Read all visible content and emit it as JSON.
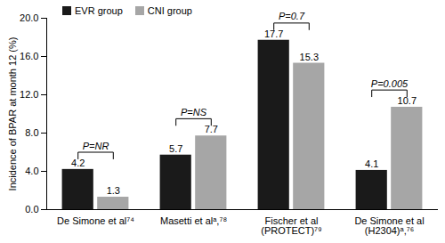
{
  "chart_data": {
    "type": "bar",
    "ylabel": "Incidence of BPAR at month 12 (%)",
    "categories": [
      "De Simone et al⁷⁴",
      "Masetti et alᵃ,⁷⁸",
      "Fischer et al\n(PROTECT)⁷⁹",
      "De Simone et al\n(H2304)ᵃ,⁷⁶"
    ],
    "series": [
      {
        "name": "EVR group",
        "color": "#1a1a1a",
        "values": [
          4.2,
          5.7,
          17.7,
          4.1
        ]
      },
      {
        "name": "CNI group",
        "color": "#a6a6a6",
        "values": [
          1.3,
          7.7,
          15.3,
          10.7
        ]
      }
    ],
    "annotations": [
      "P=NR",
      "P=NS",
      "P=0.7",
      "P=0.005"
    ],
    "ylim": [
      0,
      20
    ],
    "yticks": [
      {
        "value": 0,
        "label": "0.0"
      },
      {
        "value": 4,
        "label": "4.0"
      },
      {
        "value": 8,
        "label": "8.0"
      },
      {
        "value": 12,
        "label": "12.0"
      },
      {
        "value": 16,
        "label": "16.0"
      },
      {
        "value": 20,
        "label": "20.0"
      }
    ],
    "data_labels": true,
    "legend": "top-left",
    "grid": false
  }
}
